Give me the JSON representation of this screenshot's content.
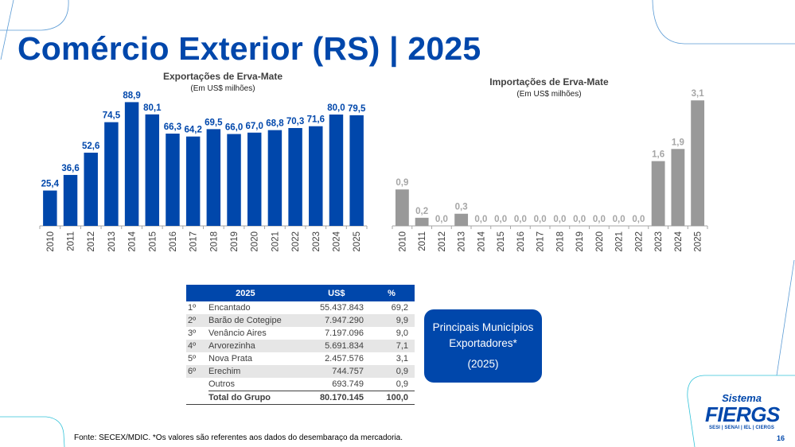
{
  "slide": {
    "title": "Comércio Exterior (RS) | 2025",
    "page_number": "16",
    "footer": "Fonte: SECEX/MDIC. *Os valores são referentes aos dados do desembaraço da mercadoria.",
    "logo": {
      "line1": "Sistema",
      "line2": "FIERGS",
      "line3": "SESI | SENAI | IEL | CIERGS"
    },
    "colors": {
      "brand_blue": "#0047ab",
      "import_gray": "#999999",
      "accent_line": "#5b9bd5"
    }
  },
  "callout": {
    "line1": "Principais Municípios",
    "line2": "Exportadores*",
    "line3": "(2025)"
  },
  "table": {
    "headers": [
      "2025",
      "US$",
      "%"
    ],
    "rows": [
      {
        "rank": "1º",
        "name": "Encantado",
        "usd": "55.437.843",
        "pct": "69,2"
      },
      {
        "rank": "2º",
        "name": "Barão de Cotegipe",
        "usd": "7.947.290",
        "pct": "9,9"
      },
      {
        "rank": "3º",
        "name": "Venâncio Aires",
        "usd": "7.197.096",
        "pct": "9,0"
      },
      {
        "rank": "4º",
        "name": "Arvorezinha",
        "usd": "5.691.834",
        "pct": "7,1"
      },
      {
        "rank": "5º",
        "name": "Nova Prata",
        "usd": "2.457.576",
        "pct": "3,1"
      },
      {
        "rank": "6º",
        "name": "Erechim",
        "usd": "744.757",
        "pct": "0,9"
      },
      {
        "rank": "",
        "name": "Outros",
        "usd": "693.749",
        "pct": "0,9"
      }
    ],
    "total": {
      "rank": "",
      "name": "Total do Grupo",
      "usd": "80.170.145",
      "pct": "100,0"
    }
  },
  "chart_data": [
    {
      "type": "bar",
      "title": "Exportações de Erva-Mate",
      "subtitle": "(Em US$ milhões)",
      "xlabel": "",
      "ylabel": "",
      "categories": [
        "2010",
        "2011",
        "2012",
        "2013",
        "2014",
        "2015",
        "2016",
        "2017",
        "2018",
        "2019",
        "2020",
        "2021",
        "2022",
        "2023",
        "2024",
        "2025"
      ],
      "values": [
        25.4,
        36.6,
        52.6,
        74.5,
        88.9,
        80.1,
        66.3,
        64.2,
        69.5,
        66.0,
        67.0,
        68.8,
        70.3,
        71.6,
        80.0,
        79.5
      ],
      "labels": [
        "25,4",
        "36,6",
        "52,6",
        "74,5",
        "88,9",
        "80,1",
        "66,3",
        "64,2",
        "69,5",
        "66,0",
        "67,0",
        "68,8",
        "70,3",
        "71,6",
        "80,0",
        "79,5"
      ],
      "ylim": [
        0,
        100
      ],
      "grid": false,
      "color": "#0047ab",
      "label_color": "#0047ab"
    },
    {
      "type": "bar",
      "title": "Importações de Erva-Mate",
      "subtitle": "(Em US$ milhões)",
      "xlabel": "",
      "ylabel": "",
      "categories": [
        "2010",
        "2011",
        "2012",
        "2013",
        "2014",
        "2015",
        "2016",
        "2017",
        "2018",
        "2019",
        "2020",
        "2021",
        "2022",
        "2023",
        "2024",
        "2025"
      ],
      "values": [
        0.9,
        0.2,
        0.0,
        0.3,
        0.0,
        0.0,
        0.0,
        0.0,
        0.0,
        0.0,
        0.0,
        0.0,
        0.0,
        1.6,
        1.9,
        3.1
      ],
      "labels": [
        "0,9",
        "0,2",
        "0,0",
        "0,3",
        "0,0",
        "0,0",
        "0,0",
        "0,0",
        "0,0",
        "0,0",
        "0,0",
        "0,0",
        "0,0",
        "1,6",
        "1,9",
        "3,1"
      ],
      "ylim": [
        0,
        3.5
      ],
      "grid": false,
      "color": "#999999",
      "label_color": "#a6a6a6"
    }
  ]
}
